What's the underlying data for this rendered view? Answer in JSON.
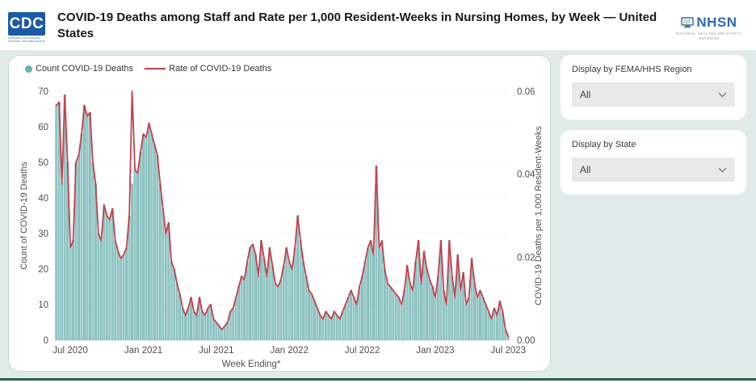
{
  "header": {
    "title": "COVID-19 Deaths among Staff and Rate per 1,000 Resident-Weeks in Nursing Homes, by Week — United States",
    "cdc_logo_text": "CDC",
    "cdc_logo_subtitle": "CENTERS FOR DISEASE CONTROL AND PREVENTION",
    "nhsn_name": "NHSN",
    "nhsn_subtitle": "NATIONAL HEALTHCARE SAFETY NETWORK"
  },
  "filters": {
    "region": {
      "label": "Display by FEMA/HHS Region",
      "value": "All"
    },
    "state": {
      "label": "Display by State",
      "value": "All"
    }
  },
  "chart_data": {
    "type": "bar+line",
    "legend": [
      {
        "label": "Count COVID-19 Deaths",
        "marker": "dot",
        "color": "#62b2b0"
      },
      {
        "label": "Rate of COVID-19 Deaths",
        "marker": "line",
        "color": "#c2414d"
      }
    ],
    "xlabel": "Week Ending*",
    "x_tick_labels": [
      "Jul 2020",
      "Jan 2021",
      "Jul 2021",
      "Jan 2022",
      "Jul 2022",
      "Jan 2023",
      "Jul 2023"
    ],
    "x_tick_indices": [
      5,
      31,
      57,
      83,
      109,
      135,
      161
    ],
    "n_weeks": 162,
    "left_axis": {
      "label": "Count of COVID-19 Deaths",
      "min": 0,
      "max": 70,
      "ticks": [
        0,
        10,
        20,
        30,
        40,
        50,
        60,
        70
      ]
    },
    "right_axis": {
      "label": "COVID-19 Deaths per 1,000 Resident-Weeks",
      "min": 0,
      "max": 0.06,
      "tick_values": [
        0,
        0.02,
        0.04,
        0.06
      ],
      "tick_labels": [
        "0.00",
        "0.02",
        "0.04",
        "0.06"
      ]
    },
    "grid": "dotted-horizontal",
    "colors": {
      "bar_fill": "#94c8c7",
      "bar_stroke": "#52a09d",
      "line": "#c2414d",
      "grid": "#d9d9d9",
      "axis_text": "#4f4f4f"
    },
    "series": [
      {
        "name": "Count COVID-19 Deaths",
        "type": "bar",
        "axis": "left",
        "values": [
          66,
          67,
          44,
          69,
          50,
          26,
          28,
          50,
          52,
          58,
          66,
          63,
          64,
          50,
          44,
          30,
          28,
          38,
          35,
          34,
          37,
          28,
          25,
          23,
          24,
          26,
          35,
          44,
          48,
          47,
          53,
          58,
          57,
          61,
          58,
          55,
          52,
          44,
          37,
          30,
          33,
          22,
          20,
          16,
          13,
          9,
          7,
          9,
          12,
          8,
          7,
          12,
          8,
          7,
          9,
          10,
          6,
          5,
          4,
          3,
          4,
          5,
          8,
          9,
          12,
          15,
          18,
          17,
          22,
          26,
          27,
          24,
          18,
          28,
          23,
          18,
          26,
          21,
          16,
          15,
          17,
          21,
          26,
          22,
          20,
          26,
          35,
          28,
          22,
          18,
          14,
          13,
          11,
          9,
          7,
          6,
          8,
          7,
          6,
          8,
          7,
          6,
          8,
          10,
          12,
          14,
          12,
          10,
          15,
          18,
          22,
          26,
          28,
          24,
          49,
          26,
          28,
          20,
          16,
          15,
          14,
          13,
          12,
          10,
          14,
          21,
          16,
          14,
          22,
          28,
          16,
          25,
          20,
          17,
          15,
          12,
          18,
          28,
          14,
          10,
          28,
          18,
          12,
          24,
          14,
          19,
          10,
          12,
          23,
          16,
          12,
          14,
          12,
          10,
          8,
          6,
          9,
          7,
          11,
          8,
          3,
          1
        ]
      },
      {
        "name": "Rate of COVID-19 Deaths",
        "type": "line",
        "axis": "right",
        "values": [
          0.0566,
          0.0574,
          0.0377,
          0.0591,
          0.0429,
          0.0223,
          0.024,
          0.0429,
          0.0446,
          0.0497,
          0.0566,
          0.054,
          0.0549,
          0.0429,
          0.0377,
          0.0257,
          0.024,
          0.0326,
          0.03,
          0.0291,
          0.0317,
          0.024,
          0.0214,
          0.0197,
          0.0206,
          0.0223,
          0.03,
          0.06,
          0.0411,
          0.0403,
          0.0454,
          0.0497,
          0.0489,
          0.0523,
          0.0497,
          0.0471,
          0.0446,
          0.0377,
          0.0317,
          0.0257,
          0.0283,
          0.0189,
          0.0171,
          0.0137,
          0.0111,
          0.0077,
          0.006,
          0.0077,
          0.0103,
          0.0069,
          0.006,
          0.0103,
          0.0069,
          0.006,
          0.0077,
          0.0086,
          0.0051,
          0.0043,
          0.0034,
          0.0026,
          0.0034,
          0.0043,
          0.0069,
          0.0077,
          0.0103,
          0.0129,
          0.0154,
          0.0146,
          0.0189,
          0.0223,
          0.0231,
          0.0206,
          0.0154,
          0.024,
          0.0197,
          0.0154,
          0.0223,
          0.018,
          0.0137,
          0.0129,
          0.0146,
          0.018,
          0.0223,
          0.0189,
          0.0171,
          0.0223,
          0.03,
          0.024,
          0.0189,
          0.0154,
          0.012,
          0.0111,
          0.0094,
          0.0077,
          0.006,
          0.0051,
          0.0069,
          0.006,
          0.0051,
          0.0069,
          0.006,
          0.0051,
          0.0069,
          0.0086,
          0.0103,
          0.012,
          0.0103,
          0.0086,
          0.0129,
          0.0154,
          0.0189,
          0.0223,
          0.024,
          0.0206,
          0.042,
          0.0223,
          0.024,
          0.0171,
          0.0137,
          0.0129,
          0.012,
          0.0111,
          0.0103,
          0.0086,
          0.012,
          0.018,
          0.0137,
          0.012,
          0.0189,
          0.024,
          0.0137,
          0.0214,
          0.0171,
          0.0146,
          0.0129,
          0.0103,
          0.0154,
          0.024,
          0.012,
          0.0086,
          0.024,
          0.0154,
          0.0103,
          0.0206,
          0.012,
          0.0163,
          0.0086,
          0.0103,
          0.0197,
          0.0137,
          0.0103,
          0.012,
          0.0103,
          0.0086,
          0.0069,
          0.0051,
          0.0077,
          0.006,
          0.0094,
          0.0069,
          0.0026,
          0.0009
        ]
      }
    ]
  }
}
